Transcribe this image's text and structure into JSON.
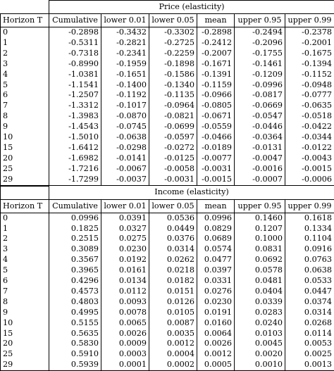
{
  "sections": [
    {
      "title": "Price (elasticity)",
      "headers": [
        "Horizon T",
        "Cumulative",
        "lower 0.01",
        "lower 0.05",
        "mean",
        "upper 0.95",
        "upper 0.99"
      ],
      "rows": [
        [
          "0",
          "-0.2898",
          "-0.3432",
          "-0.3302",
          "-0.2898",
          "-0.2494",
          "-0.2378"
        ],
        [
          "1",
          "-0.5311",
          "-0.2821",
          "-0.2725",
          "-0.2412",
          "-0.2096",
          "-0.2001"
        ],
        [
          "2",
          "-0.7318",
          "-0.2341",
          "-0.2259",
          "-0.2007",
          "-0.1755",
          "-0.1675"
        ],
        [
          "3",
          "-0.8990",
          "-0.1959",
          "-0.1898",
          "-0.1671",
          "-0.1461",
          "-0.1394"
        ],
        [
          "4",
          "-1.0381",
          "-0.1651",
          "-0.1586",
          "-0.1391",
          "-0.1209",
          "-0.1152"
        ],
        [
          "5",
          "-1.1541",
          "-0.1400",
          "-0.1340",
          "-0.1159",
          "-0.0996",
          "-0.0948"
        ],
        [
          "6",
          "-1.2507",
          "-0.1192",
          "-0.1135",
          "-0.0966",
          "-0.0817",
          "-0.0777"
        ],
        [
          "7",
          "-1.3312",
          "-0.1017",
          "-0.0964",
          "-0.0805",
          "-0.0669",
          "-0.0635"
        ],
        [
          "8",
          "-1.3983",
          "-0.0870",
          "-0.0821",
          "-0.0671",
          "-0.0547",
          "-0.0518"
        ],
        [
          "9",
          "-1.4543",
          "-0.0745",
          "-0.0699",
          "-0.0559",
          "-0.0446",
          "-0.0422"
        ],
        [
          "10",
          "-1.5010",
          "-0.0638",
          "-0.0597",
          "-0.0466",
          "-0.0364",
          "-0.0344"
        ],
        [
          "15",
          "-1.6412",
          "-0.0298",
          "-0.0272",
          "-0.0189",
          "-0.0131",
          "-0.0122"
        ],
        [
          "20",
          "-1.6982",
          "-0.0141",
          "-0.0125",
          "-0.0077",
          "-0.0047",
          "-0.0043"
        ],
        [
          "25",
          "-1.7216",
          "-0.0067",
          "-0.0058",
          "-0.0031",
          "-0.0016",
          "-0.0015"
        ],
        [
          "29",
          "-1.7299",
          "-0.0037",
          "-0.0031",
          "-0.0015",
          "-0.0007",
          "-0.0006"
        ]
      ]
    },
    {
      "title": "Income (elasticity)",
      "headers": [
        "Horizon T",
        "Cumulative",
        "lower 0.01",
        "lower 0.05",
        "mean",
        "upper 0.95",
        "upper 0.99"
      ],
      "rows": [
        [
          "0",
          "0.0996",
          "0.0391",
          "0.0536",
          "0.0996",
          "0.1460",
          "0.1618"
        ],
        [
          "1",
          "0.1825",
          "0.0327",
          "0.0449",
          "0.0829",
          "0.1207",
          "0.1334"
        ],
        [
          "2",
          "0.2515",
          "0.0275",
          "0.0376",
          "0.0689",
          "0.1000",
          "0.1104"
        ],
        [
          "3",
          "0.3089",
          "0.0230",
          "0.0314",
          "0.0574",
          "0.0831",
          "0.0916"
        ],
        [
          "4",
          "0.3567",
          "0.0192",
          "0.0262",
          "0.0477",
          "0.0692",
          "0.0763"
        ],
        [
          "5",
          "0.3965",
          "0.0161",
          "0.0218",
          "0.0397",
          "0.0578",
          "0.0638"
        ],
        [
          "6",
          "0.4296",
          "0.0134",
          "0.0182",
          "0.0331",
          "0.0481",
          "0.0533"
        ],
        [
          "7",
          "0.4573",
          "0.0112",
          "0.0151",
          "0.0276",
          "0.0404",
          "0.0447"
        ],
        [
          "8",
          "0.4803",
          "0.0093",
          "0.0126",
          "0.0230",
          "0.0339",
          "0.0374"
        ],
        [
          "9",
          "0.4995",
          "0.0078",
          "0.0105",
          "0.0191",
          "0.0283",
          "0.0314"
        ],
        [
          "10",
          "0.5155",
          "0.0065",
          "0.0087",
          "0.0160",
          "0.0240",
          "0.0268"
        ],
        [
          "15",
          "0.5635",
          "0.0026",
          "0.0035",
          "0.0064",
          "0.0103",
          "0.0114"
        ],
        [
          "20",
          "0.5830",
          "0.0009",
          "0.0012",
          "0.0026",
          "0.0045",
          "0.0053"
        ],
        [
          "25",
          "0.5910",
          "0.0003",
          "0.0004",
          "0.0012",
          "0.0020",
          "0.0025"
        ],
        [
          "29",
          "0.5939",
          "0.0001",
          "0.0002",
          "0.0005",
          "0.0010",
          "0.0013"
        ]
      ]
    }
  ]
}
